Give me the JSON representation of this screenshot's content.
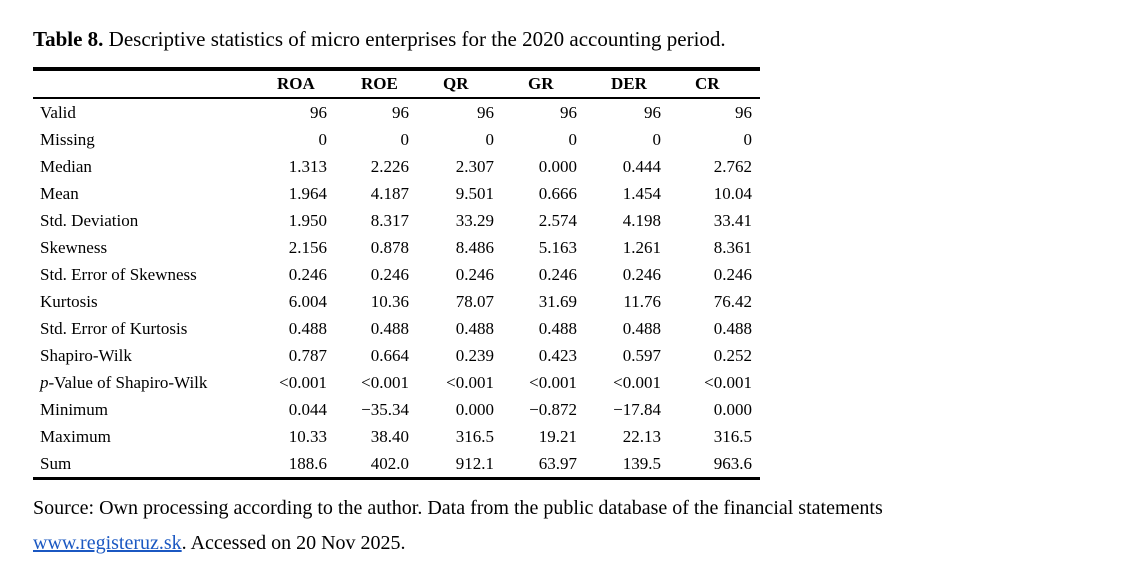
{
  "title": {
    "label": "Table 8.",
    "text": "Descriptive statistics of micro enterprises for the 2020 accounting period."
  },
  "table": {
    "columns": [
      "ROA",
      "ROE",
      "QR",
      "GR",
      "DER",
      "CR"
    ],
    "rows": [
      {
        "label": "Valid",
        "values": [
          "96",
          "96",
          "96",
          "96",
          "96",
          "96"
        ]
      },
      {
        "label": "Missing",
        "values": [
          "0",
          "0",
          "0",
          "0",
          "0",
          "0"
        ]
      },
      {
        "label": "Median",
        "values": [
          "1.313",
          "2.226",
          "2.307",
          "0.000",
          "0.444",
          "2.762"
        ]
      },
      {
        "label": "Mean",
        "values": [
          "1.964",
          "4.187",
          "9.501",
          "0.666",
          "1.454",
          "10.04"
        ]
      },
      {
        "label": "Std. Deviation",
        "values": [
          "1.950",
          "8.317",
          "33.29",
          "2.574",
          "4.198",
          "33.41"
        ]
      },
      {
        "label": "Skewness",
        "values": [
          "2.156",
          "0.878",
          "8.486",
          "5.163",
          "1.261",
          "8.361"
        ]
      },
      {
        "label": "Std. Error of Skewness",
        "values": [
          "0.246",
          "0.246",
          "0.246",
          "0.246",
          "0.246",
          "0.246"
        ]
      },
      {
        "label": "Kurtosis",
        "values": [
          "6.004",
          "10.36",
          "78.07",
          "31.69",
          "11.76",
          "76.42"
        ]
      },
      {
        "label": "Std. Error of Kurtosis",
        "values": [
          "0.488",
          "0.488",
          "0.488",
          "0.488",
          "0.488",
          "0.488"
        ]
      },
      {
        "label": "Shapiro-Wilk",
        "values": [
          "0.787",
          "0.664",
          "0.239",
          "0.423",
          "0.597",
          "0.252"
        ]
      },
      {
        "label": "p-Value of Shapiro-Wilk",
        "italic_first_char": true,
        "values": [
          "<0.001",
          "<0.001",
          "<0.001",
          "<0.001",
          "<0.001",
          "<0.001"
        ]
      },
      {
        "label": "Minimum",
        "values": [
          "0.044",
          "−35.34",
          "0.000",
          "−0.872",
          "−17.84",
          "0.000"
        ]
      },
      {
        "label": "Maximum",
        "values": [
          "10.33",
          "38.40",
          "316.5",
          "19.21",
          "22.13",
          "316.5"
        ]
      },
      {
        "label": "Sum",
        "values": [
          "188.6",
          "402.0",
          "912.1",
          "63.97",
          "139.5",
          "963.6"
        ]
      }
    ]
  },
  "footer": {
    "line1": "Source: Own processing according to the author. Data from the public database of the financial statements",
    "link_text": "www.registeruz.sk",
    "line2_suffix": ". Accessed on 20 Nov 2025.",
    "link_color": "#1b58c2"
  }
}
